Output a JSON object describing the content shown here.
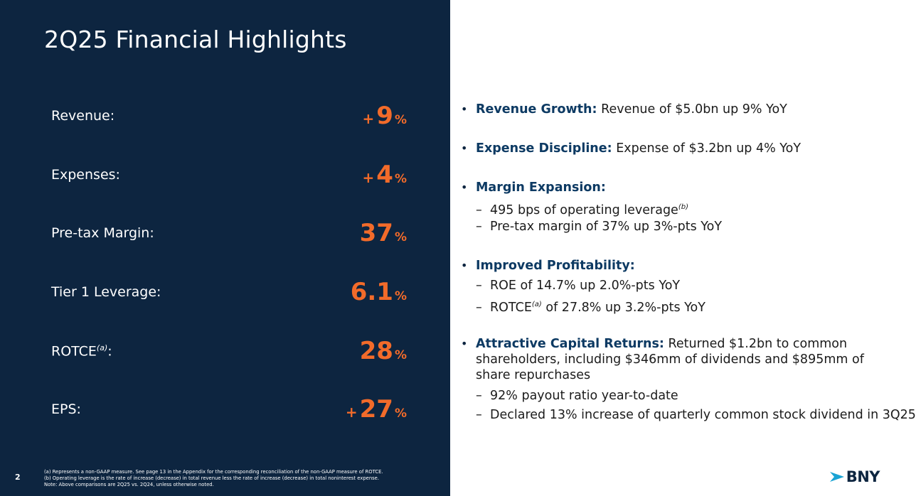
{
  "slide": {
    "title": "2Q25 Financial Highlights",
    "page_number": "2"
  },
  "metrics": [
    {
      "label": "Revenue:",
      "sign": "+",
      "value": "9",
      "unit": "%"
    },
    {
      "label": "Expenses:",
      "sign": "+",
      "value": "4",
      "unit": "%"
    },
    {
      "label": "Pre-tax Margin:",
      "sign": "",
      "value": "37",
      "unit": "%"
    },
    {
      "label": "Tier 1 Leverage:",
      "sign": "",
      "value": "6.1",
      "unit": "%"
    },
    {
      "label": "ROTCE",
      "label_sup": "(a)",
      "label_suffix": ":",
      "sign": "",
      "value": "28",
      "unit": "%"
    },
    {
      "label": "EPS:",
      "sign": "+",
      "value": "27",
      "unit": "%"
    }
  ],
  "highlights": [
    {
      "head": "Revenue Growth:",
      "text": " Revenue of $5.0bn up 9% YoY"
    },
    {
      "head": "Expense Discipline:",
      "text": " Expense of $3.2bn up 4% YoY"
    },
    {
      "head": "Margin Expansion:",
      "text": "",
      "subs": [
        {
          "text": "495 bps of operating leverage",
          "sup": "(b)",
          "after": ""
        },
        {
          "text": "Pre-tax margin of 37% up 3%-pts YoY"
        }
      ]
    },
    {
      "head": "Improved Profitability:",
      "text": "",
      "subs": [
        {
          "text": "ROE of 14.7% up 2.0%-pts YoY"
        },
        {
          "text": "ROTCE",
          "sup": "(a)",
          "after": " of 27.8% up 3.2%-pts YoY"
        }
      ]
    },
    {
      "head": "Attractive Capital Returns:",
      "text": " Returned $1.2bn to common shareholders, including $346mm of dividends and $895mm of share repurchases",
      "subs": [
        {
          "text": "92% payout ratio year-to-date"
        },
        {
          "text": "Declared 13% increase of quarterly common stock dividend in 3Q25"
        }
      ]
    }
  ],
  "dash": "–",
  "bullet_char": "•",
  "footnotes": {
    "a": "(a) Represents a non-GAAP measure. See page 13 in the Appendix for the corresponding reconciliation of the non-GAAP measure of ROTCE.",
    "b": "(b) Operating leverage is the rate of increase (decrease) in total revenue less the rate of increase (decrease) in total noninterest expense.",
    "note": "Note: Above comparisons are 2Q25 vs. 2Q24, unless otherwise noted."
  },
  "logo": {
    "text": "BNY",
    "mark_icon": "chevron-arrow-icon"
  },
  "colors": {
    "navy": "#0d2540",
    "orange": "#f26b2a",
    "heading_blue": "#0d3a63",
    "logo_cyan": "#1aa3d4"
  }
}
